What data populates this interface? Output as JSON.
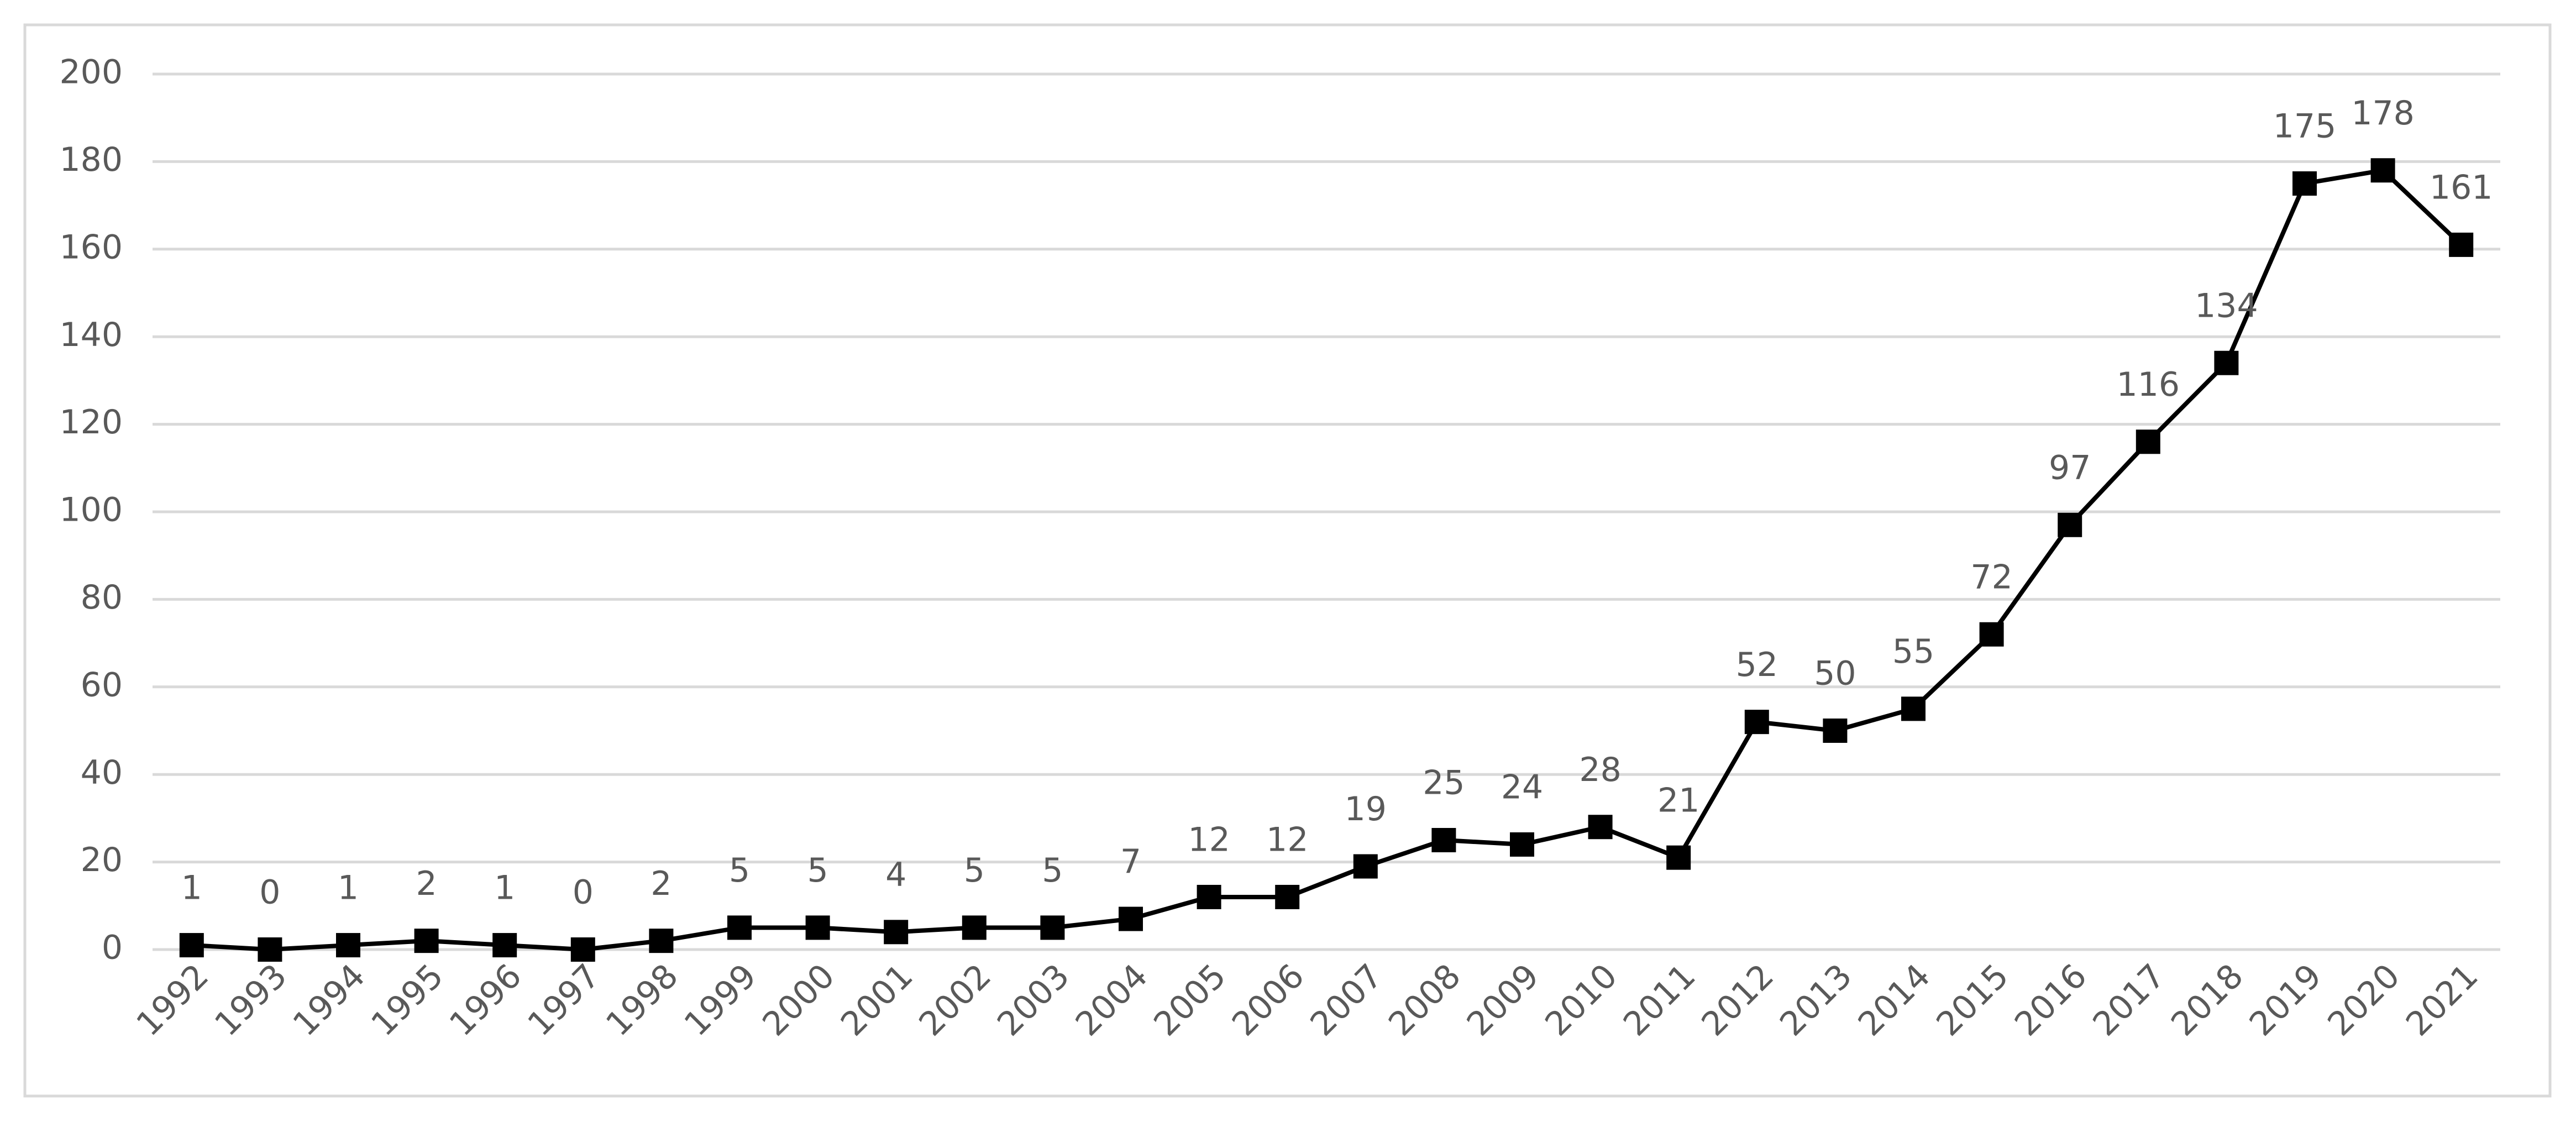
{
  "chart_data": {
    "type": "line",
    "categories": [
      "1992",
      "1993",
      "1994",
      "1995",
      "1996",
      "1997",
      "1998",
      "1999",
      "2000",
      "2001",
      "2002",
      "2003",
      "2004",
      "2005",
      "2006",
      "2007",
      "2008",
      "2009",
      "2010",
      "2011",
      "2012",
      "2013",
      "2014",
      "2015",
      "2016",
      "2017",
      "2018",
      "2019",
      "2020",
      "2021"
    ],
    "values": [
      1,
      0,
      1,
      2,
      1,
      0,
      2,
      5,
      5,
      4,
      5,
      5,
      7,
      12,
      12,
      19,
      25,
      24,
      28,
      21,
      52,
      50,
      55,
      72,
      97,
      116,
      134,
      175,
      178,
      161
    ],
    "color": "#000000",
    "ylim": [
      0,
      200
    ],
    "yticks": [
      0,
      20,
      40,
      60,
      80,
      100,
      120,
      140,
      160,
      180,
      200
    ],
    "grid": true
  }
}
